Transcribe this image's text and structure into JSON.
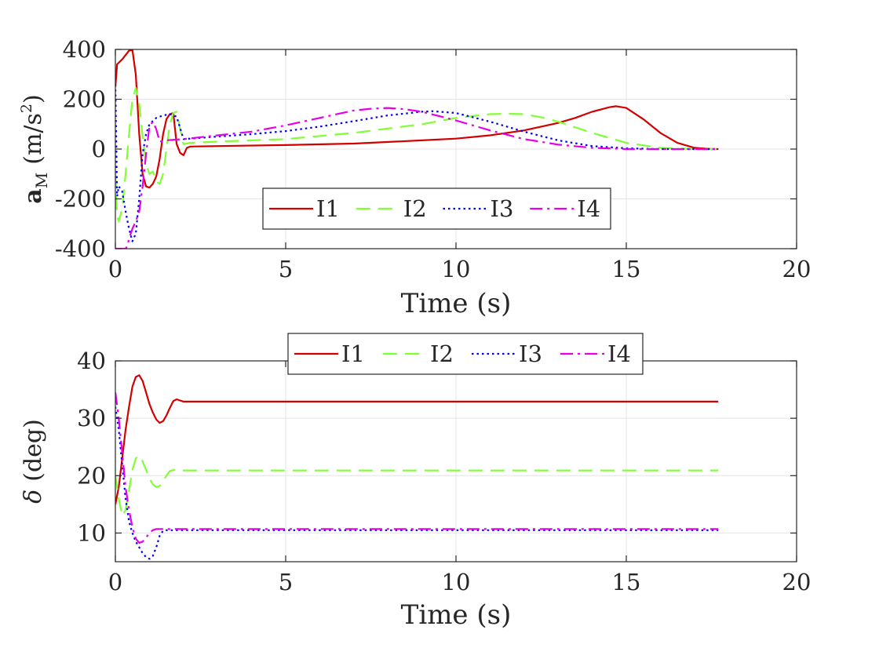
{
  "chart_data": [
    {
      "type": "line",
      "xlabel": "Time (s)",
      "ylabel_main": "a",
      "ylabel_sub": "M",
      "ylabel_unit": "(m/s",
      "ylabel_sup": "2",
      "ylabel_close": ")",
      "xlim": [
        0,
        20
      ],
      "ylim": [
        -400,
        400
      ],
      "xticks": [
        "0",
        "5",
        "10",
        "15",
        "20"
      ],
      "yticks": [
        "-400",
        "-200",
        "0",
        "200",
        "400"
      ],
      "grid": true,
      "legend": {
        "placement": "lower-center",
        "orientation": "horizontal"
      },
      "series": [
        {
          "name": "I1",
          "color": "#d40000",
          "dash": "solid",
          "x": [
            0,
            0.05,
            0.2,
            0.4,
            0.5,
            0.6,
            0.7,
            0.8,
            0.9,
            1.0,
            1.1,
            1.2,
            1.3,
            1.4,
            1.5,
            1.6,
            1.7,
            1.8,
            1.9,
            2.0,
            2.1,
            2.2,
            3,
            5,
            7,
            9,
            10,
            11,
            12,
            13,
            13.5,
            14,
            14.5,
            14.7,
            15,
            15.5,
            16,
            16.5,
            17,
            17.5,
            17.7
          ],
          "y": [
            250,
            340,
            360,
            395,
            398,
            300,
            60,
            -100,
            -150,
            -155,
            -140,
            -110,
            -40,
            60,
            120,
            140,
            145,
            20,
            -15,
            -25,
            5,
            10,
            12,
            16,
            22,
            35,
            42,
            55,
            75,
            105,
            125,
            150,
            168,
            172,
            165,
            120,
            65,
            25,
            5,
            0,
            0
          ]
        },
        {
          "name": "I2",
          "color": "#80ff33",
          "dash": "dashed",
          "x": [
            0,
            0.05,
            0.1,
            0.2,
            0.3,
            0.4,
            0.5,
            0.6,
            0.7,
            0.8,
            0.9,
            1.0,
            1.1,
            1.2,
            1.3,
            1.4,
            1.5,
            1.6,
            1.7,
            1.8,
            1.9,
            2.0,
            2.2,
            3,
            5,
            7,
            9,
            10,
            11,
            11.5,
            12,
            12.5,
            13,
            14,
            15,
            16,
            17,
            17.7
          ],
          "y": [
            -100,
            -270,
            -290,
            -240,
            -100,
            60,
            200,
            245,
            180,
            50,
            -60,
            -100,
            -90,
            -130,
            -140,
            -100,
            0,
            100,
            145,
            150,
            80,
            20,
            25,
            30,
            40,
            65,
            100,
            125,
            140,
            142,
            140,
            128,
            110,
            65,
            25,
            5,
            0,
            0
          ]
        },
        {
          "name": "I3",
          "color": "#0000ff",
          "dash": "dotted",
          "x": [
            0,
            0.05,
            0.1,
            0.2,
            0.3,
            0.4,
            0.5,
            0.6,
            0.7,
            0.8,
            0.9,
            1.0,
            1.2,
            1.4,
            1.6,
            1.8,
            2,
            3,
            4,
            5,
            6,
            7,
            8,
            9,
            9.3,
            10,
            11,
            12,
            13,
            14,
            15,
            16,
            17,
            17.7
          ],
          "y": [
            260,
            -190,
            -150,
            -170,
            -250,
            -320,
            -370,
            -340,
            -200,
            -20,
            60,
            100,
            125,
            135,
            140,
            130,
            40,
            50,
            60,
            72,
            90,
            112,
            135,
            150,
            152,
            145,
            110,
            70,
            35,
            12,
            3,
            0,
            0,
            0
          ]
        },
        {
          "name": "I4",
          "color": "#e600e6",
          "dash": "dashdot",
          "x": [
            0,
            0.1,
            0.2,
            0.3,
            0.35,
            0.4,
            0.5,
            0.6,
            0.7,
            0.8,
            0.9,
            1.0,
            1.1,
            1.2,
            1.3,
            1.5,
            2,
            3,
            4,
            5,
            6,
            7,
            7.5,
            8,
            8.5,
            9,
            10,
            11,
            12,
            13,
            14,
            15,
            16,
            17,
            17.7
          ],
          "y": [
            -400,
            -400,
            -400,
            -400,
            -390,
            -360,
            -320,
            -290,
            -250,
            -150,
            -20,
            90,
            110,
            80,
            30,
            35,
            40,
            55,
            70,
            95,
            125,
            155,
            162,
            165,
            160,
            150,
            115,
            75,
            40,
            18,
            5,
            0,
            0,
            0,
            0
          ]
        }
      ]
    },
    {
      "type": "line",
      "xlabel": "Time (s)",
      "ylabel_main": "δ",
      "ylabel_unit": "(deg)",
      "xlim": [
        0,
        20
      ],
      "ylim": [
        5,
        40
      ],
      "xticks": [
        "0",
        "5",
        "10",
        "15",
        "20"
      ],
      "yticks": [
        "10",
        "20",
        "30",
        "40"
      ],
      "grid": true,
      "legend": {
        "placement": "top",
        "orientation": "horizontal"
      },
      "series": [
        {
          "name": "I1",
          "color": "#d40000",
          "dash": "solid",
          "x": [
            0,
            0.1,
            0.2,
            0.3,
            0.4,
            0.5,
            0.6,
            0.7,
            0.8,
            0.9,
            1.0,
            1.1,
            1.2,
            1.3,
            1.4,
            1.5,
            1.6,
            1.7,
            1.8,
            1.9,
            2.0,
            2.2,
            5,
            10,
            15,
            17.7
          ],
          "y": [
            15,
            18,
            23,
            28,
            32,
            35.5,
            37.2,
            37.5,
            36.5,
            34.5,
            32.5,
            31,
            29.8,
            29.2,
            29.5,
            30.5,
            31.8,
            33,
            33.3,
            33.1,
            32.9,
            32.9,
            32.9,
            32.9,
            32.9,
            32.9
          ]
        },
        {
          "name": "I2",
          "color": "#80ff33",
          "dash": "dashed",
          "x": [
            0,
            0.1,
            0.2,
            0.3,
            0.4,
            0.5,
            0.6,
            0.7,
            0.8,
            0.9,
            1.0,
            1.1,
            1.2,
            1.3,
            1.4,
            1.5,
            1.6,
            1.7,
            1.8,
            1.9,
            2.0,
            2.2,
            5,
            10,
            15,
            17.7
          ],
          "y": [
            20,
            16,
            13,
            14,
            17.5,
            21,
            23,
            23.5,
            22.5,
            21,
            19.5,
            18.5,
            18,
            18.2,
            19,
            20,
            20.8,
            21,
            21,
            20.9,
            20.9,
            20.9,
            20.9,
            20.9,
            20.9,
            20.9
          ]
        },
        {
          "name": "I3",
          "color": "#0000ff",
          "dash": "dotted",
          "x": [
            0,
            0.05,
            0.1,
            0.2,
            0.3,
            0.4,
            0.5,
            0.6,
            0.7,
            0.8,
            0.9,
            1.0,
            1.1,
            1.2,
            1.3,
            1.4,
            1.5,
            2,
            5,
            10,
            15,
            17.7
          ],
          "y": [
            32,
            30,
            28,
            22,
            16,
            12,
            10,
            8.5,
            7.5,
            6.5,
            5.8,
            5.5,
            6,
            7.5,
            9.5,
            10.4,
            10.5,
            10.5,
            10.5,
            10.5,
            10.5,
            10.5
          ]
        },
        {
          "name": "I4",
          "color": "#e600e6",
          "dash": "dashdot",
          "x": [
            0,
            0.1,
            0.2,
            0.3,
            0.4,
            0.5,
            0.6,
            0.7,
            0.8,
            0.9,
            1.0,
            1.1,
            1.2,
            1.4,
            1.6,
            2,
            5,
            10,
            15,
            17.7
          ],
          "y": [
            34.5,
            30,
            24,
            18,
            14,
            11,
            9,
            8.3,
            8.5,
            9.2,
            10,
            10.5,
            10.7,
            10.7,
            10.7,
            10.7,
            10.7,
            10.7,
            10.7,
            10.7
          ]
        }
      ]
    }
  ]
}
